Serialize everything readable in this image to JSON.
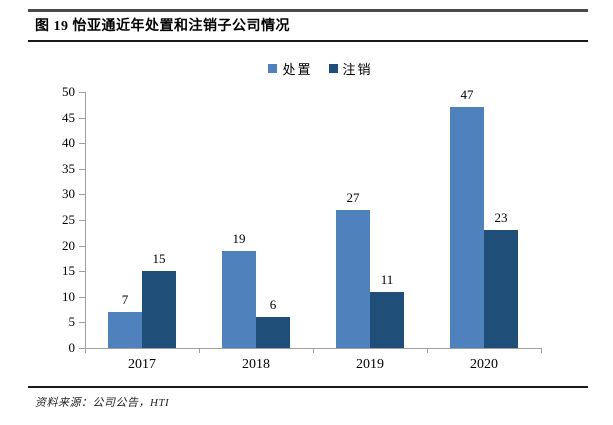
{
  "figure": {
    "title": "图 19 怡亚通近年处置和注销子公司情况",
    "source": "资料来源：公司公告，HTI"
  },
  "colors": {
    "series_disposal": "#4F81BD",
    "series_deregister": "#1F4E79",
    "axis": "#A0A0A0"
  },
  "chart_data": {
    "type": "bar",
    "categories": [
      "2017",
      "2018",
      "2019",
      "2020"
    ],
    "series": [
      {
        "name": "处置",
        "color": "#4F81BD",
        "values": [
          7,
          19,
          27,
          47
        ]
      },
      {
        "name": "注销",
        "color": "#1F4E79",
        "values": [
          15,
          6,
          11,
          23
        ]
      }
    ],
    "title": "",
    "xlabel": "",
    "ylabel": "",
    "ylim": [
      0,
      50
    ],
    "yticks": [
      0,
      5,
      10,
      15,
      20,
      25,
      30,
      35,
      40,
      45,
      50
    ],
    "grid": false,
    "legend_position": "top-center",
    "data_labels": true
  }
}
